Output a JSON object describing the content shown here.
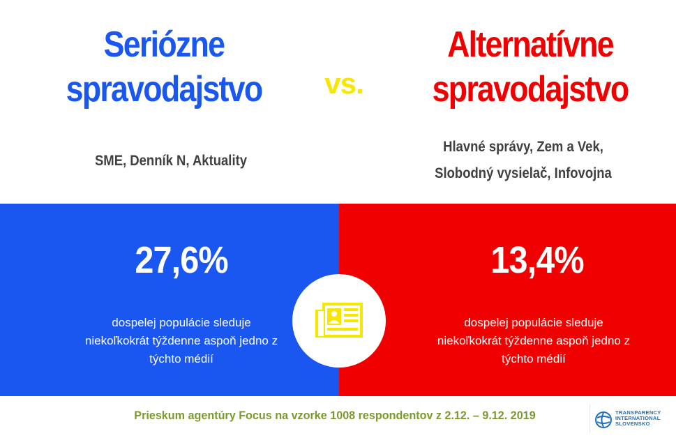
{
  "left": {
    "title_line1": "Seriózne",
    "title_line2": "spravodajstvo",
    "sources": "SME, Denník N, Aktuality",
    "percentage": "27,6%",
    "desc_line1": "dospelej populácie sleduje",
    "desc_line2": "niekoľkokrát týždenne aspoň jedno z",
    "desc_line3": "týchto médií",
    "color": "#1a56f0"
  },
  "vs": "vs.",
  "right": {
    "title_line1": "Alternatívne",
    "title_line2": "spravodajstvo",
    "sources_line1": "Hlavné správy, Zem a Vek,",
    "sources_line2": "Slobodný vysielač, Infovojna",
    "percentage": "13,4%",
    "desc_line1": "dospelej populácie sleduje",
    "desc_line2": "niekoľkokrát týždenne aspoň jedno z",
    "desc_line3": "týchto médií",
    "color": "#f00000"
  },
  "center_icon": "newspaper-icon",
  "footer": {
    "survey": "Prieskum agentúry Focus na vzorke 1008 respondentov z 2.12. – 9.12. 2019",
    "logo_line1": "TRANSPARENCY",
    "logo_line2": "INTERNATIONAL",
    "logo_line3": "SLOVENSKO"
  }
}
